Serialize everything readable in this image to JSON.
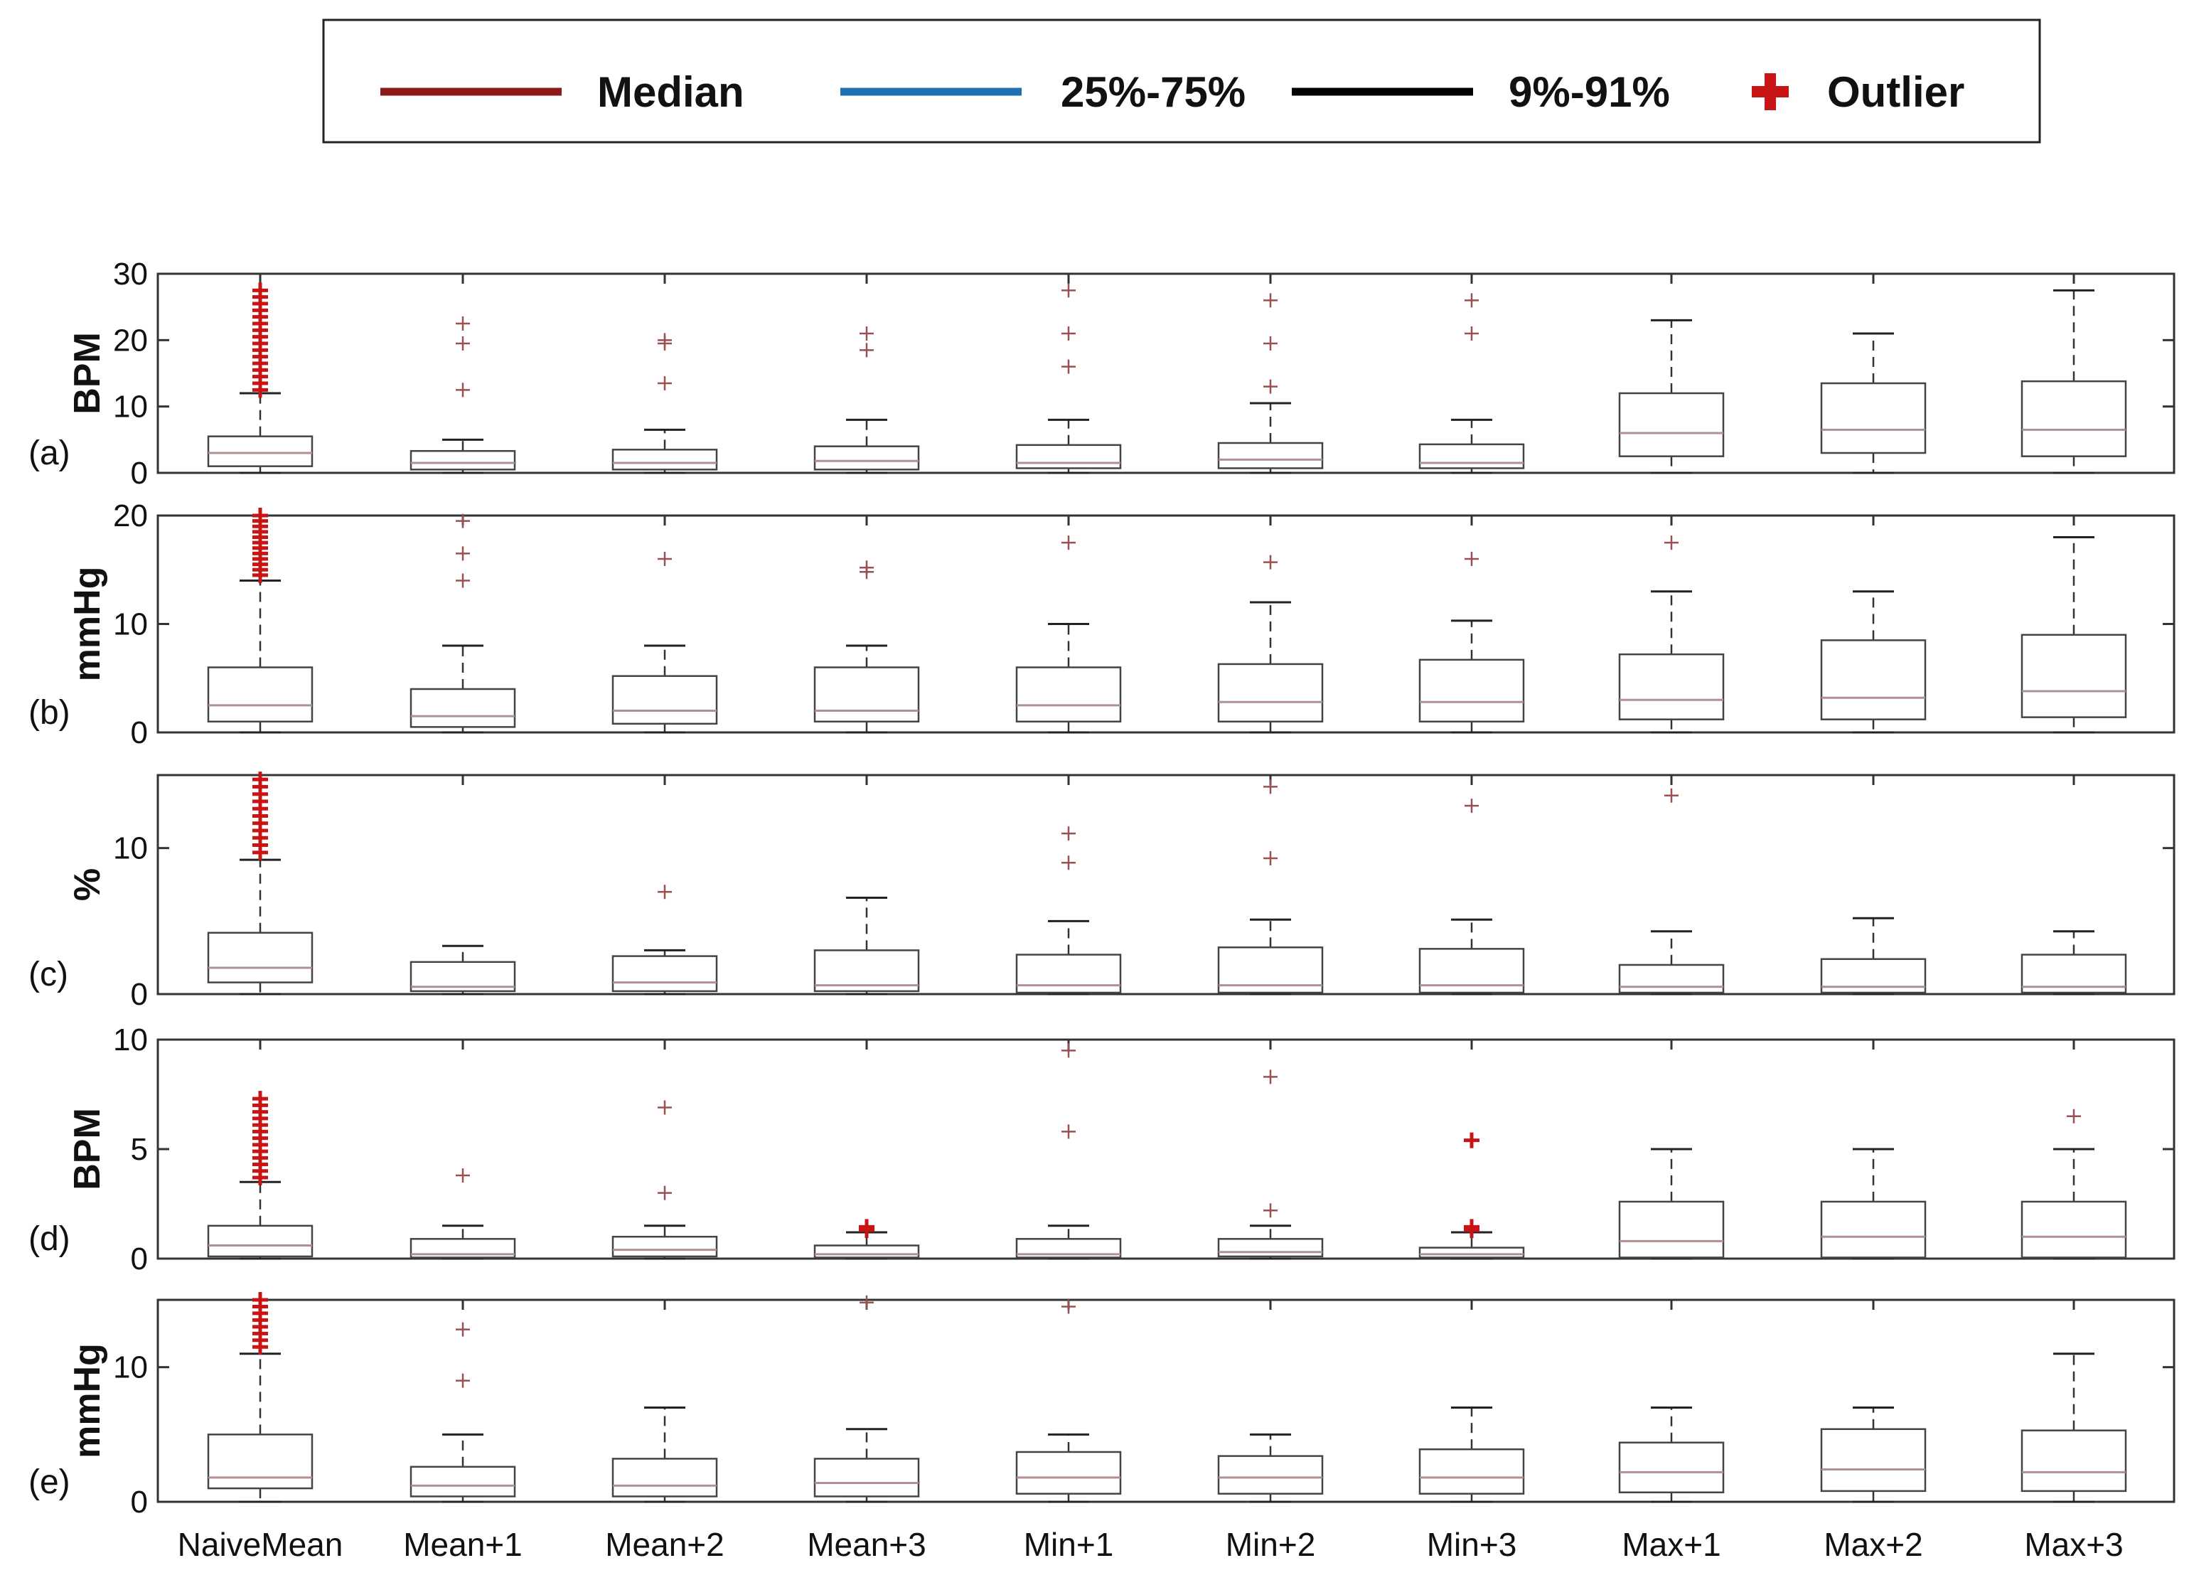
{
  "legend": {
    "items": [
      {
        "label": "Median",
        "color": "#8b1a1a",
        "kind": "line"
      },
      {
        "label": "25%-75%",
        "color": "#1f6fb2",
        "kind": "line"
      },
      {
        "label": "9%-91%",
        "color": "#000000",
        "kind": "line"
      },
      {
        "label": "Outlier",
        "color": "#c81414",
        "kind": "plus"
      }
    ]
  },
  "colors": {
    "box": "#444444",
    "median": "#b09090",
    "whisker": "#333333",
    "outlier": "#c81414",
    "outlier_light": "#9a5050"
  },
  "chart_data": [
    {
      "type": "boxplot",
      "panel": "(a)",
      "ylabel": "BPM",
      "ylim": [
        0,
        30
      ],
      "yticks": [
        0,
        10,
        20,
        30
      ],
      "categories": [
        "NaiveMean",
        "Mean+1",
        "Mean+2",
        "Mean+3",
        "Min+1",
        "Min+2",
        "Min+3",
        "Max+1",
        "Max+2",
        "Max+3"
      ],
      "boxes": [
        {
          "whislo": 0,
          "q1": 1,
          "med": 3,
          "q3": 5.5,
          "whishi": 12,
          "fliers": [
            12.5,
            13.5,
            14.5,
            15.5,
            16.5,
            17.5,
            18.5,
            19.5,
            20.5,
            21.5,
            22.5,
            23.5,
            24.5,
            25.5,
            26.5,
            27.5
          ],
          "dense": true
        },
        {
          "whislo": 0,
          "q1": 0.5,
          "med": 1.5,
          "q3": 3.3,
          "whishi": 5,
          "fliers": [
            12.5,
            19.5,
            22.5
          ]
        },
        {
          "whislo": 0,
          "q1": 0.5,
          "med": 1.5,
          "q3": 3.5,
          "whishi": 6.5,
          "fliers": [
            13.5,
            19.5,
            20
          ]
        },
        {
          "whislo": 0,
          "q1": 0.5,
          "med": 1.8,
          "q3": 4,
          "whishi": 8,
          "fliers": [
            18.5,
            21
          ]
        },
        {
          "whislo": 0,
          "q1": 0.7,
          "med": 1.5,
          "q3": 4.2,
          "whishi": 8,
          "fliers": [
            16,
            21,
            27.5
          ]
        },
        {
          "whislo": 0,
          "q1": 0.7,
          "med": 2,
          "q3": 4.5,
          "whishi": 10.5,
          "fliers": [
            13,
            19.5,
            26
          ]
        },
        {
          "whislo": 0,
          "q1": 0.7,
          "med": 1.5,
          "q3": 4.3,
          "whishi": 8,
          "fliers": [
            21,
            26
          ]
        },
        {
          "whislo": 0,
          "q1": 2.5,
          "med": 6,
          "q3": 12,
          "whishi": 23,
          "fliers": []
        },
        {
          "whislo": 0,
          "q1": 3,
          "med": 6.5,
          "q3": 13.5,
          "whishi": 21,
          "fliers": []
        },
        {
          "whislo": 0,
          "q1": 2.5,
          "med": 6.5,
          "q3": 13.8,
          "whishi": 27.5,
          "fliers": []
        }
      ]
    },
    {
      "type": "boxplot",
      "panel": "(b)",
      "ylabel": "mmHg",
      "ylim": [
        0,
        20
      ],
      "yticks": [
        0,
        10,
        20
      ],
      "categories": [
        "NaiveMean",
        "Mean+1",
        "Mean+2",
        "Mean+3",
        "Min+1",
        "Min+2",
        "Min+3",
        "Max+1",
        "Max+2",
        "Max+3"
      ],
      "boxes": [
        {
          "whislo": 0,
          "q1": 1,
          "med": 2.5,
          "q3": 6,
          "whishi": 14,
          "fliers": [
            14.5,
            15,
            15.5,
            16,
            16.5,
            17,
            17.5,
            18,
            18.5,
            19,
            19.5,
            20
          ],
          "dense": true
        },
        {
          "whislo": 0,
          "q1": 0.5,
          "med": 1.5,
          "q3": 4,
          "whishi": 8,
          "fliers": [
            14,
            16.5,
            19.5
          ]
        },
        {
          "whislo": 0,
          "q1": 0.8,
          "med": 2,
          "q3": 5.2,
          "whishi": 8,
          "fliers": [
            16
          ]
        },
        {
          "whislo": 0,
          "q1": 1,
          "med": 2,
          "q3": 6,
          "whishi": 8,
          "fliers": [
            14.8,
            15.2
          ]
        },
        {
          "whislo": 0,
          "q1": 1,
          "med": 2.5,
          "q3": 6,
          "whishi": 10,
          "fliers": [
            17.5
          ]
        },
        {
          "whislo": 0,
          "q1": 1,
          "med": 2.8,
          "q3": 6.3,
          "whishi": 12,
          "fliers": [
            15.7
          ]
        },
        {
          "whislo": 0,
          "q1": 1,
          "med": 2.8,
          "q3": 6.7,
          "whishi": 10.3,
          "fliers": [
            16
          ]
        },
        {
          "whislo": 0,
          "q1": 1.2,
          "med": 3,
          "q3": 7.2,
          "whishi": 13,
          "fliers": [
            17.5
          ]
        },
        {
          "whislo": 0,
          "q1": 1.2,
          "med": 3.2,
          "q3": 8.5,
          "whishi": 13,
          "fliers": []
        },
        {
          "whislo": 0,
          "q1": 1.4,
          "med": 3.8,
          "q3": 9,
          "whishi": 18,
          "fliers": []
        }
      ]
    },
    {
      "type": "boxplot",
      "panel": "(c)",
      "ylabel": "%",
      "ylim": [
        0,
        15
      ],
      "yticks": [
        0,
        10
      ],
      "categories": [
        "NaiveMean",
        "Mean+1",
        "Mean+2",
        "Mean+3",
        "Min+1",
        "Min+2",
        "Min+3",
        "Max+1",
        "Max+2",
        "Max+3"
      ],
      "boxes": [
        {
          "whislo": 0,
          "q1": 0.8,
          "med": 1.8,
          "q3": 4.2,
          "whishi": 9.2,
          "fliers": [
            9.7,
            10.2,
            10.7,
            11.2,
            11.7,
            12.2,
            12.7,
            13.2,
            13.7,
            14.2,
            14.7
          ],
          "dense": true
        },
        {
          "whislo": 0,
          "q1": 0.2,
          "med": 0.5,
          "q3": 2.2,
          "whishi": 3.3,
          "fliers": []
        },
        {
          "whislo": 0,
          "q1": 0.2,
          "med": 0.8,
          "q3": 2.6,
          "whishi": 3,
          "fliers": [
            7
          ]
        },
        {
          "whislo": 0,
          "q1": 0.2,
          "med": 0.6,
          "q3": 3,
          "whishi": 6.6,
          "fliers": []
        },
        {
          "whislo": 0,
          "q1": 0.1,
          "med": 0.6,
          "q3": 2.7,
          "whishi": 5,
          "fliers": [
            9,
            11
          ]
        },
        {
          "whislo": 0,
          "q1": 0.1,
          "med": 0.6,
          "q3": 3.2,
          "whishi": 5.1,
          "fliers": [
            9.3,
            14.2
          ]
        },
        {
          "whislo": 0,
          "q1": 0.1,
          "med": 0.6,
          "q3": 3.1,
          "whishi": 5.1,
          "fliers": [
            12.9
          ]
        },
        {
          "whislo": 0,
          "q1": 0.1,
          "med": 0.5,
          "q3": 2,
          "whishi": 4.3,
          "fliers": [
            13.6
          ]
        },
        {
          "whislo": 0,
          "q1": 0.1,
          "med": 0.5,
          "q3": 2.4,
          "whishi": 5.2,
          "fliers": []
        },
        {
          "whislo": 0,
          "q1": 0.1,
          "med": 0.5,
          "q3": 2.7,
          "whishi": 4.3,
          "fliers": []
        }
      ]
    },
    {
      "type": "boxplot",
      "panel": "(d)",
      "ylabel": "BPM",
      "ylim": [
        0,
        10
      ],
      "yticks": [
        0,
        5,
        10
      ],
      "categories": [
        "NaiveMean",
        "Mean+1",
        "Mean+2",
        "Mean+3",
        "Min+1",
        "Min+2",
        "Min+3",
        "Max+1",
        "Max+2",
        "Max+3"
      ],
      "boxes": [
        {
          "whislo": 0,
          "q1": 0.1,
          "med": 0.6,
          "q3": 1.5,
          "whishi": 3.5,
          "fliers": [
            3.7,
            4,
            4.3,
            4.6,
            4.9,
            5.2,
            5.5,
            5.8,
            6.1,
            6.4,
            6.7,
            7,
            7.3
          ],
          "dense": true
        },
        {
          "whislo": 0,
          "q1": 0.05,
          "med": 0.2,
          "q3": 0.9,
          "whishi": 1.5,
          "fliers": [
            3.8
          ]
        },
        {
          "whislo": 0,
          "q1": 0.1,
          "med": 0.4,
          "q3": 1,
          "whishi": 1.5,
          "fliers": [
            3,
            6.9
          ]
        },
        {
          "whislo": 0,
          "q1": 0.05,
          "med": 0.2,
          "q3": 0.6,
          "whishi": 1.2,
          "fliers": [
            1.3,
            1.45
          ],
          "dense": true
        },
        {
          "whislo": 0,
          "q1": 0.05,
          "med": 0.2,
          "q3": 0.9,
          "whishi": 1.5,
          "fliers": [
            5.8,
            9.5
          ]
        },
        {
          "whislo": 0,
          "q1": 0.1,
          "med": 0.3,
          "q3": 0.9,
          "whishi": 1.5,
          "fliers": [
            2.2,
            8.3
          ]
        },
        {
          "whislo": 0,
          "q1": 0.05,
          "med": 0.2,
          "q3": 0.5,
          "whishi": 1.2,
          "fliers": [
            1.3,
            1.45,
            5.4
          ],
          "dense": true
        },
        {
          "whislo": 0,
          "q1": 0.05,
          "med": 0.8,
          "q3": 2.6,
          "whishi": 5,
          "fliers": []
        },
        {
          "whislo": 0,
          "q1": 0.05,
          "med": 1,
          "q3": 2.6,
          "whishi": 5,
          "fliers": []
        },
        {
          "whislo": 0,
          "q1": 0.05,
          "med": 1,
          "q3": 2.6,
          "whishi": 5,
          "fliers": [
            6.5
          ]
        }
      ]
    },
    {
      "type": "boxplot",
      "panel": "(e)",
      "ylabel": "mmHg",
      "ylim": [
        0,
        15
      ],
      "yticks": [
        0,
        10
      ],
      "categories": [
        "NaiveMean",
        "Mean+1",
        "Mean+2",
        "Mean+3",
        "Min+1",
        "Min+2",
        "Min+3",
        "Max+1",
        "Max+2",
        "Max+3"
      ],
      "boxes": [
        {
          "whislo": 0,
          "q1": 1,
          "med": 1.8,
          "q3": 5,
          "whishi": 11,
          "fliers": [
            11.5,
            12,
            12.5,
            13,
            13.5,
            14,
            14.5,
            15
          ],
          "dense": true
        },
        {
          "whislo": 0,
          "q1": 0.4,
          "med": 1.2,
          "q3": 2.6,
          "whishi": 5,
          "fliers": [
            9,
            12.8
          ]
        },
        {
          "whislo": 0,
          "q1": 0.4,
          "med": 1.2,
          "q3": 3.2,
          "whishi": 7,
          "fliers": []
        },
        {
          "whislo": 0,
          "q1": 0.4,
          "med": 1.4,
          "q3": 3.2,
          "whishi": 5.4,
          "fliers": [
            14.8
          ]
        },
        {
          "whislo": 0,
          "q1": 0.6,
          "med": 1.8,
          "q3": 3.7,
          "whishi": 5,
          "fliers": [
            14.5
          ]
        },
        {
          "whislo": 0,
          "q1": 0.6,
          "med": 1.8,
          "q3": 3.4,
          "whishi": 5,
          "fliers": []
        },
        {
          "whislo": 0,
          "q1": 0.6,
          "med": 1.8,
          "q3": 3.9,
          "whishi": 7,
          "fliers": []
        },
        {
          "whislo": 0,
          "q1": 0.7,
          "med": 2.2,
          "q3": 4.4,
          "whishi": 7,
          "fliers": []
        },
        {
          "whislo": 0,
          "q1": 0.8,
          "med": 2.4,
          "q3": 5.4,
          "whishi": 7,
          "fliers": []
        },
        {
          "whislo": 0,
          "q1": 0.8,
          "med": 2.2,
          "q3": 5.3,
          "whishi": 11,
          "fliers": []
        }
      ]
    }
  ]
}
